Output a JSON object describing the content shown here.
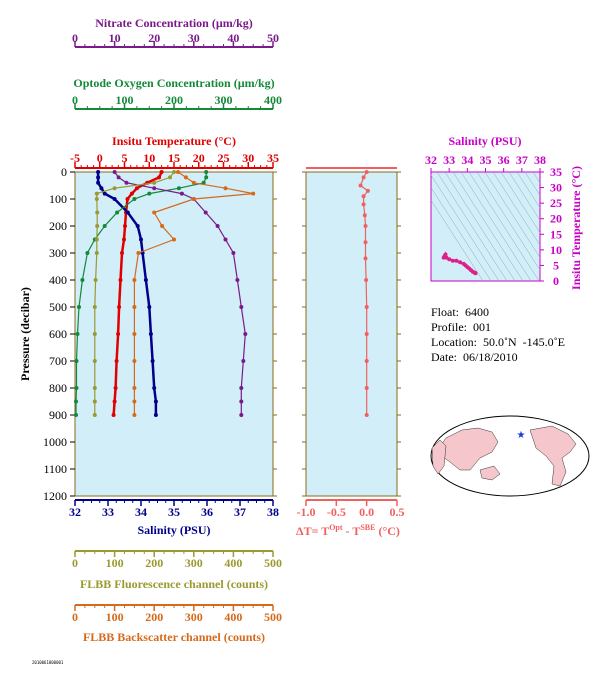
{
  "colors": {
    "nitrate": "#7a1a8a",
    "oxygen": "#13893a",
    "temperature": "#e00000",
    "salinity": "#00008b",
    "fluorescence": "#9a9a30",
    "backscatter": "#d46a1a",
    "delta": "#f06060",
    "ts_axis": "#c800c8",
    "plot_bg": "#d2eef8",
    "axis_frame": "#8a6a1a"
  },
  "axes": {
    "nitrate": {
      "title": "Nitrate Concentration (µm/kg)",
      "ticks": [
        "0",
        "10",
        "20",
        "30",
        "40",
        "50"
      ]
    },
    "oxygen": {
      "title": "Optode Oxygen Concentration (µm/kg)",
      "ticks": [
        "0",
        "100",
        "200",
        "300",
        "400"
      ]
    },
    "temperature": {
      "title": "Insitu Temperature (°C)",
      "ticks": [
        "-5",
        "0",
        "5",
        "10",
        "15",
        "20",
        "25",
        "30",
        "35"
      ]
    },
    "salinity": {
      "title": "Salinity (PSU)",
      "ticks": [
        "32",
        "33",
        "34",
        "35",
        "36",
        "37",
        "38"
      ]
    },
    "pressure": {
      "title": "Pressure (decibar)",
      "ticks": [
        "0",
        "100",
        "200",
        "300",
        "400",
        "500",
        "600",
        "700",
        "800",
        "900",
        "1000",
        "1100",
        "1200"
      ]
    },
    "fluorescence": {
      "title": "FLBB Fluorescence channel (counts)",
      "ticks": [
        "0",
        "100",
        "200",
        "300",
        "400",
        "500"
      ]
    },
    "backscatter": {
      "title": "FLBB Backscatter channel (counts)",
      "ticks": [
        "0",
        "100",
        "200",
        "300",
        "400",
        "500"
      ]
    },
    "delta": {
      "title_prefix": "ΔT= T",
      "sup1": "Opt",
      "mid": " - T",
      "sup2": "SBE",
      "suffix": " (°C)",
      "ticks": [
        "-1.0",
        "-0.5",
        "0.0",
        "0.5"
      ]
    },
    "ts_salinity": {
      "title": "Salinity (PSU)",
      "ticks": [
        "32",
        "33",
        "34",
        "35",
        "36",
        "37",
        "38"
      ]
    },
    "ts_temperature": {
      "title": "Insitu Temperature (°C)",
      "ticks": [
        "0",
        "5",
        "10",
        "15",
        "20",
        "25",
        "30",
        "35"
      ]
    }
  },
  "info": {
    "float": "Float:  6400",
    "profile": "Profile:  001",
    "location": "Location:  50.0˚N  -145.0˚E",
    "date": "Date:  06/18/2010"
  },
  "chart_data": [
    {
      "type": "line",
      "role": "main-profile",
      "pressure_range": [
        1200,
        0
      ],
      "series": [
        {
          "name": "Insitu Temperature",
          "axis": "temperature",
          "xlim": [
            -5,
            35
          ],
          "x": [
            12.5,
            12.0,
            9.6,
            7.5,
            6.5,
            5.6,
            5.3,
            5.1,
            4.9,
            4.5,
            4.2,
            3.9,
            3.7,
            3.4,
            3.2,
            3.0,
            2.8
          ],
          "y": [
            0,
            20,
            40,
            60,
            80,
            100,
            150,
            200,
            250,
            300,
            400,
            500,
            600,
            700,
            800,
            850,
            900
          ]
        },
        {
          "name": "Salinity",
          "axis": "salinity",
          "xlim": [
            32,
            38
          ],
          "x": [
            32.7,
            32.7,
            32.7,
            32.8,
            32.9,
            33.2,
            33.6,
            33.9,
            34.0,
            34.05,
            34.15,
            34.25,
            34.3,
            34.35,
            34.4,
            34.45,
            34.45
          ],
          "y": [
            0,
            20,
            40,
            60,
            80,
            100,
            150,
            200,
            250,
            300,
            400,
            500,
            600,
            700,
            800,
            850,
            900
          ]
        },
        {
          "name": "Optode Oxygen",
          "axis": "oxygen",
          "xlim": [
            0,
            400
          ],
          "x": [
            265,
            265,
            260,
            210,
            150,
            120,
            85,
            60,
            40,
            25,
            15,
            8,
            5,
            3,
            3,
            2,
            2
          ],
          "y": [
            0,
            20,
            40,
            60,
            80,
            100,
            150,
            200,
            250,
            300,
            400,
            500,
            600,
            700,
            800,
            850,
            900
          ]
        },
        {
          "name": "Nitrate",
          "axis": "nitrate",
          "xlim": [
            0,
            50
          ],
          "x": [
            10,
            11,
            13,
            20,
            27,
            30,
            33,
            36,
            38,
            40,
            41,
            42,
            43,
            42.5,
            42,
            42,
            42
          ],
          "y": [
            0,
            20,
            40,
            60,
            80,
            100,
            150,
            200,
            250,
            300,
            400,
            500,
            600,
            700,
            800,
            850,
            900
          ]
        },
        {
          "name": "FLBB Fluorescence",
          "axis": "fluorescence",
          "xlim": [
            0,
            500
          ],
          "x": [
            250,
            240,
            200,
            100,
            55,
            55,
            56,
            56,
            55,
            55,
            52,
            50,
            50,
            50,
            50,
            50,
            50
          ],
          "y": [
            0,
            20,
            40,
            60,
            80,
            100,
            150,
            200,
            250,
            300,
            400,
            500,
            600,
            700,
            800,
            850,
            900
          ]
        },
        {
          "name": "FLBB Backscatter",
          "axis": "backscatter",
          "xlim": [
            0,
            500
          ],
          "x": [
            260,
            280,
            300,
            380,
            450,
            300,
            200,
            220,
            250,
            160,
            150,
            150,
            150,
            150,
            150,
            150,
            150
          ],
          "y": [
            0,
            20,
            40,
            60,
            80,
            100,
            150,
            200,
            250,
            300,
            400,
            500,
            600,
            700,
            800,
            850,
            900
          ]
        }
      ]
    },
    {
      "type": "line",
      "role": "delta-t",
      "xlim": [
        -1.0,
        0.5
      ],
      "pressure_range": [
        1200,
        0
      ],
      "series": [
        {
          "name": "ΔT",
          "x": [
            0.0,
            -0.05,
            -0.1,
            0.02,
            -0.05,
            -0.05,
            -0.03,
            -0.02,
            -0.02,
            -0.02,
            -0.01,
            0.0,
            0.0,
            0.0,
            0.0,
            0.0
          ],
          "y": [
            0,
            20,
            50,
            70,
            90,
            120,
            160,
            200,
            260,
            320,
            400,
            500,
            600,
            700,
            800,
            900
          ]
        }
      ]
    },
    {
      "type": "scatter",
      "role": "ts-diagram",
      "xlim": [
        32,
        38
      ],
      "ylim": [
        0,
        35
      ],
      "series": [
        {
          "name": "T-S",
          "x": [
            32.7,
            32.75,
            32.8,
            32.85,
            33.0,
            33.2,
            33.4,
            33.6,
            33.8,
            33.9,
            34.0,
            34.1,
            34.2,
            34.3,
            34.4,
            34.45
          ],
          "y": [
            7.5,
            8.0,
            8.5,
            7.5,
            7.0,
            6.5,
            6.5,
            6.0,
            5.5,
            5.0,
            4.5,
            4.0,
            3.5,
            3.0,
            2.7,
            2.5
          ]
        }
      ]
    }
  ],
  "footer_code": "2010061800001"
}
